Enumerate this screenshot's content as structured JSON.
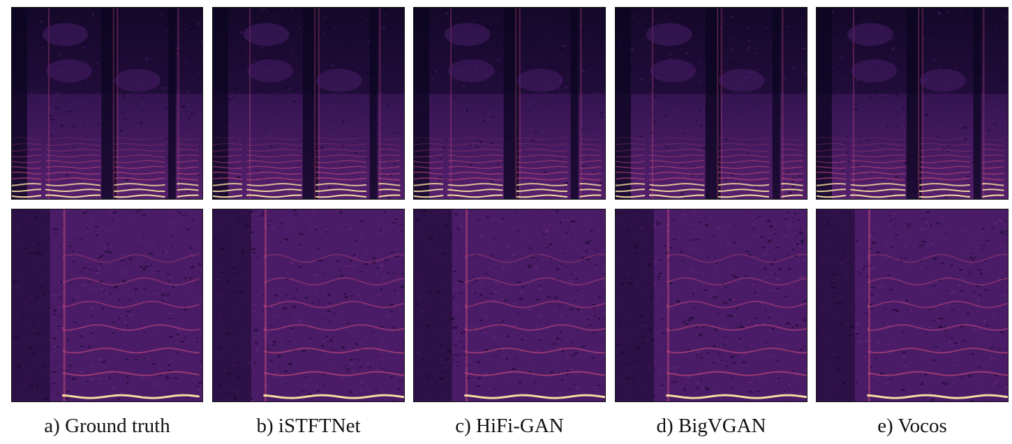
{
  "figure": {
    "columns": [
      {
        "key": "gt",
        "caption": "a) Ground truth"
      },
      {
        "key": "istftnet",
        "caption": "b) iSTFTNet"
      },
      {
        "key": "hifigan",
        "caption": "c) HiFi-GAN"
      },
      {
        "key": "bigvgan",
        "caption": "d) BigVGAN"
      },
      {
        "key": "vocos",
        "caption": "e) Vocos"
      }
    ],
    "rows": [
      {
        "key": "singing-voice"
      },
      {
        "key": "speech"
      }
    ],
    "colormap": {
      "dark": "#0b0520",
      "mid": "#4b1d6b",
      "bright": "#c34a7a",
      "hot": "#ffe7a3"
    }
  }
}
